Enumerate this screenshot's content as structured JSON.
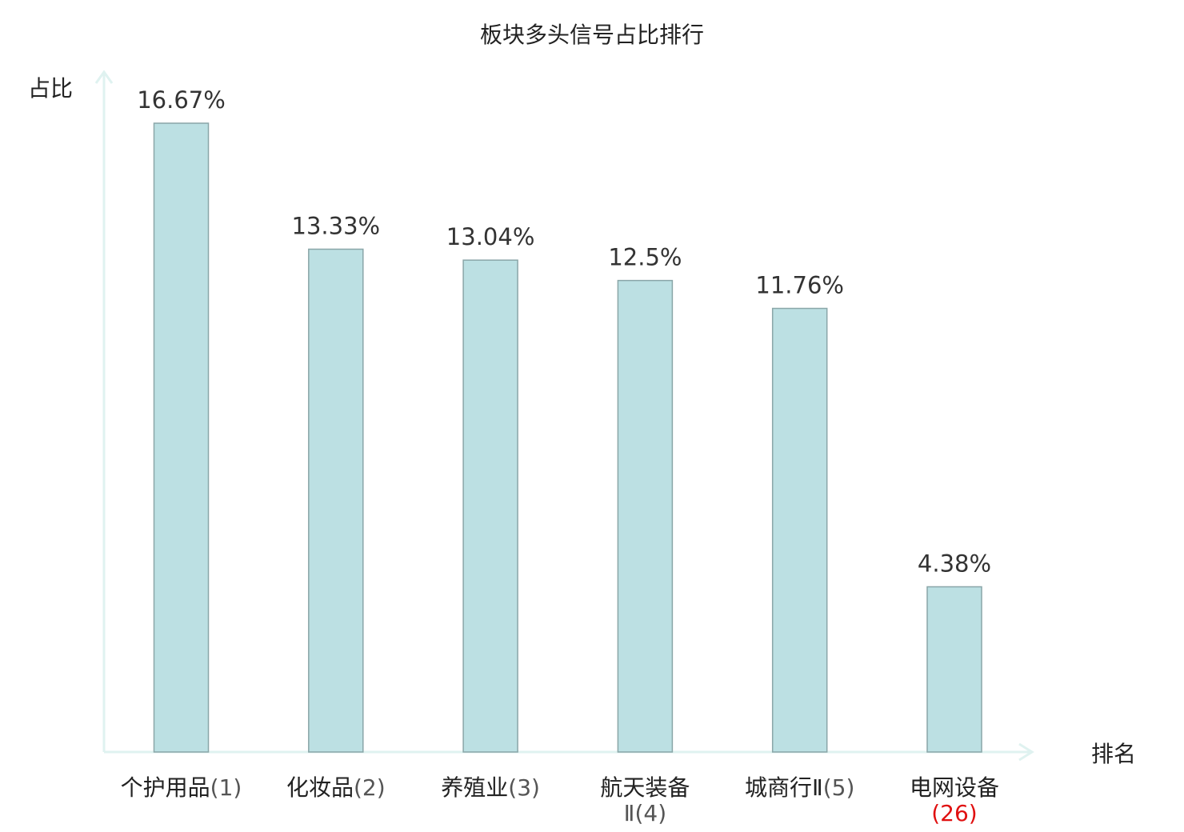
{
  "chart_data": {
    "type": "bar",
    "title": "板块多头信号占比排行",
    "ylabel": "占比",
    "xlabel": "排名",
    "categories": [
      {
        "name": "个护用品",
        "rank": "(1)"
      },
      {
        "name": "化妆品",
        "rank": "(2)"
      },
      {
        "name": "养殖业",
        "rank": "(3)"
      },
      {
        "name": "航天装备",
        "rank": "Ⅱ(4)"
      },
      {
        "name": "城商行Ⅱ",
        "rank": "(5)"
      },
      {
        "name": "电网设备",
        "rank": "(26)"
      }
    ],
    "values": [
      16.67,
      13.33,
      13.04,
      12.5,
      11.76,
      4.38
    ],
    "value_labels": [
      "16.67%",
      "13.33%",
      "13.04%",
      "12.5%",
      "11.76%",
      "4.38%"
    ],
    "highlight_index": 5,
    "ylim": [
      0,
      16.67
    ],
    "grid": false,
    "colors": {
      "bar_fill": "#bce0e3",
      "bar_stroke": "#8aa6a8",
      "axis": "#dff2f0",
      "highlight_text": "#e01010"
    }
  }
}
